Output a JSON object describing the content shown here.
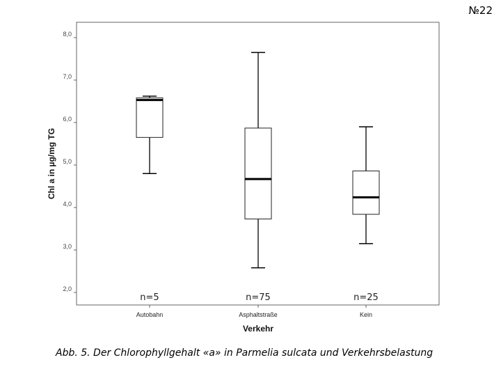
{
  "slide_number": "№22",
  "caption": "Abb. 5. Der Chlorophyllgehalt «a» in Parmelia sulcata und Verkehrsbelastung",
  "chart_data": {
    "type": "boxplot",
    "xlabel": "Verkehr",
    "ylabel": "Chl a in µg/mg TG",
    "ylim": [
      2.0,
      8.0
    ],
    "yticks": [
      "2,0",
      "3,0",
      "4,0",
      "5,0",
      "6,0",
      "7,0",
      "8,0"
    ],
    "ytick_values": [
      2,
      3,
      4,
      5,
      6,
      7,
      8
    ],
    "grid": false,
    "categories": [
      "Autobahn",
      "Asphaltstraße",
      "Kein"
    ],
    "boxes": [
      {
        "category": "Autobahn",
        "n_label": "n=5",
        "min": 4.8,
        "q1": 5.65,
        "median": 6.53,
        "q3": 6.58,
        "max": 6.62
      },
      {
        "category": "Asphaltstraße",
        "n_label": "n=75",
        "min": 2.58,
        "q1": 3.73,
        "median": 4.67,
        "q3": 5.87,
        "max": 7.65
      },
      {
        "category": "Kein",
        "n_label": "n=25",
        "min": 3.15,
        "q1": 3.84,
        "median": 4.24,
        "q3": 4.86,
        "max": 5.9
      }
    ]
  }
}
